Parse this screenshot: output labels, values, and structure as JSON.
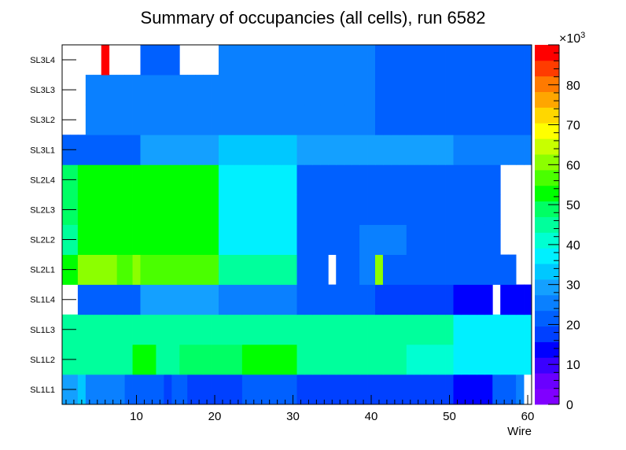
{
  "chart_data": {
    "type": "heatmap",
    "title": "Summary of occupancies (all cells),      run 6582",
    "xlabel": "Wire",
    "ylabel": "",
    "x_range": [
      0.5,
      60.5
    ],
    "x_ticks": [
      "10",
      "20",
      "30",
      "40",
      "50",
      "60"
    ],
    "y_categories": [
      "SL1L1",
      "SL1L2",
      "SL1L3",
      "SL1L4",
      "SL2L1",
      "SL2L2",
      "SL2L3",
      "SL2L4",
      "SL3L1",
      "SL3L2",
      "SL3L3",
      "SL3L4"
    ],
    "z_range": [
      0,
      90000
    ],
    "z_exponent": "×10",
    "z_exponent_power": "3",
    "z_ticks": [
      "0",
      "10",
      "20",
      "30",
      "40",
      "50",
      "60",
      "70",
      "80"
    ],
    "palette": [
      "#8000ff",
      "#6a00ff",
      "#3a00ff",
      "#0000ff",
      "#0040ff",
      "#0060ff",
      "#0a80ff",
      "#14a0ff",
      "#00c8ff",
      "#00f0ff",
      "#00ffd2",
      "#00ff9c",
      "#00ff64",
      "#00ff00",
      "#4aff00",
      "#8cff00",
      "#c8ff00",
      "#ffff00",
      "#ffd700",
      "#ffa600",
      "#ff7a00",
      "#ff3c00",
      "#ff0000"
    ],
    "cells": {
      "SL1L1": [
        29,
        29,
        33,
        27,
        27,
        27,
        27,
        26,
        20,
        20,
        20,
        20,
        20,
        16,
        20,
        20,
        17,
        17,
        17,
        17,
        17,
        18,
        18,
        23,
        23,
        23,
        23,
        23,
        23,
        23,
        16,
        16,
        16,
        16,
        16,
        16,
        16,
        16,
        16,
        16,
        16,
        16,
        16,
        16,
        16,
        16,
        16,
        16,
        16,
        16,
        12,
        12,
        12,
        12,
        12,
        20,
        20,
        20,
        24,
        null
      ],
      "SL1L2": [
        45,
        45,
        45,
        45,
        45,
        45,
        45,
        45,
        45,
        53,
        53,
        53,
        46,
        46,
        46,
        47,
        47,
        49,
        49,
        49,
        49,
        49,
        50,
        54,
        54,
        54,
        54,
        54,
        54,
        54,
        46,
        46,
        46,
        46,
        46,
        46,
        46,
        46,
        46,
        46,
        46,
        46,
        46,
        46,
        40,
        40,
        40,
        40,
        40,
        40,
        38,
        38,
        38,
        38,
        38,
        38,
        38,
        38,
        38,
        38
      ],
      "SL1L3": [
        46,
        46,
        46,
        46,
        46,
        46,
        46,
        46,
        46,
        46,
        46,
        46,
        46,
        46,
        46,
        46,
        46,
        46,
        46,
        46,
        46,
        46,
        46,
        46,
        46,
        46,
        46,
        46,
        46,
        46,
        46,
        46,
        46,
        46,
        46,
        46,
        46,
        46,
        46,
        46,
        46,
        46,
        46,
        46,
        46,
        46,
        46,
        46,
        46,
        46,
        38,
        38,
        38,
        38,
        38,
        38,
        38,
        38,
        38,
        38
      ],
      "SL1L4": [
        null,
        null,
        23,
        23,
        23,
        23,
        23,
        23,
        23,
        23,
        30,
        30,
        30,
        30,
        30,
        30,
        30,
        30,
        30,
        30,
        26,
        26,
        26,
        26,
        26,
        26,
        26,
        26,
        26,
        26,
        23,
        23,
        23,
        23,
        23,
        23,
        23,
        23,
        23,
        23,
        16,
        16,
        16,
        16,
        16,
        16,
        16,
        16,
        16,
        16,
        14,
        14,
        14,
        14,
        14,
        null,
        14,
        14,
        14,
        14
      ],
      "SL2L1": [
        54,
        54,
        60,
        62,
        62,
        62,
        62,
        58,
        58,
        62,
        58,
        58,
        58,
        58,
        58,
        58,
        58,
        58,
        58,
        58,
        44,
        44,
        44,
        44,
        44,
        44,
        44,
        44,
        44,
        44,
        21,
        21,
        21,
        21,
        null,
        21,
        21,
        21,
        25,
        25,
        62,
        21,
        21,
        21,
        21,
        21,
        21,
        21,
        21,
        21,
        21,
        21,
        21,
        21,
        21,
        21,
        21,
        21,
        null,
        null
      ],
      "SL2L2": [
        46,
        46,
        52,
        52,
        52,
        52,
        52,
        52,
        52,
        52,
        52,
        52,
        52,
        52,
        52,
        52,
        52,
        52,
        52,
        52,
        39,
        39,
        39,
        39,
        39,
        39,
        39,
        39,
        39,
        39,
        21,
        21,
        21,
        21,
        21,
        21,
        21,
        21,
        25,
        25,
        25,
        25,
        25,
        25,
        21,
        21,
        21,
        21,
        21,
        21,
        21,
        21,
        21,
        21,
        21,
        21,
        null,
        null,
        null,
        null
      ],
      "SL2L3": [
        48,
        48,
        52,
        54,
        54,
        54,
        54,
        54,
        54,
        54,
        54,
        54,
        54,
        54,
        54,
        54,
        54,
        54,
        54,
        54,
        39,
        39,
        39,
        39,
        39,
        39,
        39,
        39,
        39,
        39,
        21,
        21,
        21,
        21,
        21,
        21,
        21,
        21,
        21,
        21,
        21,
        21,
        21,
        21,
        21,
        21,
        21,
        21,
        21,
        21,
        21,
        21,
        21,
        21,
        21,
        21,
        null,
        null,
        null,
        null
      ],
      "SL2L4": [
        47,
        47,
        52,
        52,
        52,
        52,
        52,
        52,
        52,
        52,
        52,
        52,
        52,
        52,
        52,
        52,
        52,
        52,
        52,
        52,
        39,
        39,
        39,
        39,
        39,
        39,
        39,
        39,
        39,
        39,
        21,
        21,
        21,
        21,
        21,
        21,
        21,
        21,
        21,
        21,
        21,
        21,
        21,
        21,
        21,
        21,
        21,
        21,
        21,
        21,
        21,
        21,
        21,
        21,
        21,
        21,
        null,
        null,
        null,
        null
      ],
      "SL3L1": [
        22,
        22,
        22,
        22,
        22,
        22,
        22,
        22,
        22,
        22,
        30,
        30,
        30,
        30,
        30,
        30,
        30,
        30,
        30,
        30,
        35,
        35,
        35,
        35,
        35,
        35,
        35,
        35,
        35,
        35,
        28,
        28,
        28,
        28,
        28,
        28,
        28,
        28,
        28,
        28,
        28,
        28,
        28,
        28,
        28,
        28,
        28,
        28,
        28,
        28,
        24,
        24,
        24,
        24,
        24,
        24,
        24,
        24,
        24,
        24
      ],
      "SL3L2": [
        null,
        null,
        null,
        27,
        27,
        27,
        27,
        27,
        27,
        27,
        27,
        27,
        27,
        27,
        27,
        27,
        27,
        27,
        27,
        27,
        27,
        27,
        27,
        27,
        27,
        27,
        27,
        27,
        27,
        27,
        27,
        27,
        27,
        27,
        27,
        27,
        27,
        27,
        27,
        27,
        23,
        23,
        23,
        23,
        23,
        23,
        23,
        23,
        23,
        23,
        23,
        23,
        23,
        23,
        23,
        23,
        23,
        23,
        23,
        23
      ],
      "SL3L3": [
        null,
        null,
        null,
        27,
        27,
        27,
        27,
        27,
        27,
        27,
        27,
        27,
        27,
        27,
        27,
        27,
        27,
        27,
        27,
        27,
        27,
        27,
        27,
        27,
        27,
        27,
        27,
        27,
        27,
        27,
        27,
        27,
        27,
        27,
        27,
        27,
        27,
        27,
        27,
        27,
        23,
        23,
        23,
        23,
        23,
        23,
        23,
        23,
        23,
        23,
        23,
        23,
        23,
        23,
        23,
        23,
        23,
        23,
        23,
        23
      ],
      "SL3L4": [
        null,
        null,
        null,
        null,
        null,
        88,
        null,
        null,
        null,
        null,
        21,
        21,
        21,
        21,
        21,
        null,
        null,
        null,
        null,
        null,
        27,
        27,
        27,
        27,
        27,
        27,
        27,
        27,
        27,
        27,
        27,
        27,
        27,
        27,
        27,
        27,
        27,
        27,
        27,
        27,
        21,
        21,
        21,
        21,
        21,
        21,
        21,
        21,
        21,
        21,
        21,
        21,
        21,
        21,
        21,
        21,
        21,
        21,
        21,
        21
      ]
    }
  }
}
